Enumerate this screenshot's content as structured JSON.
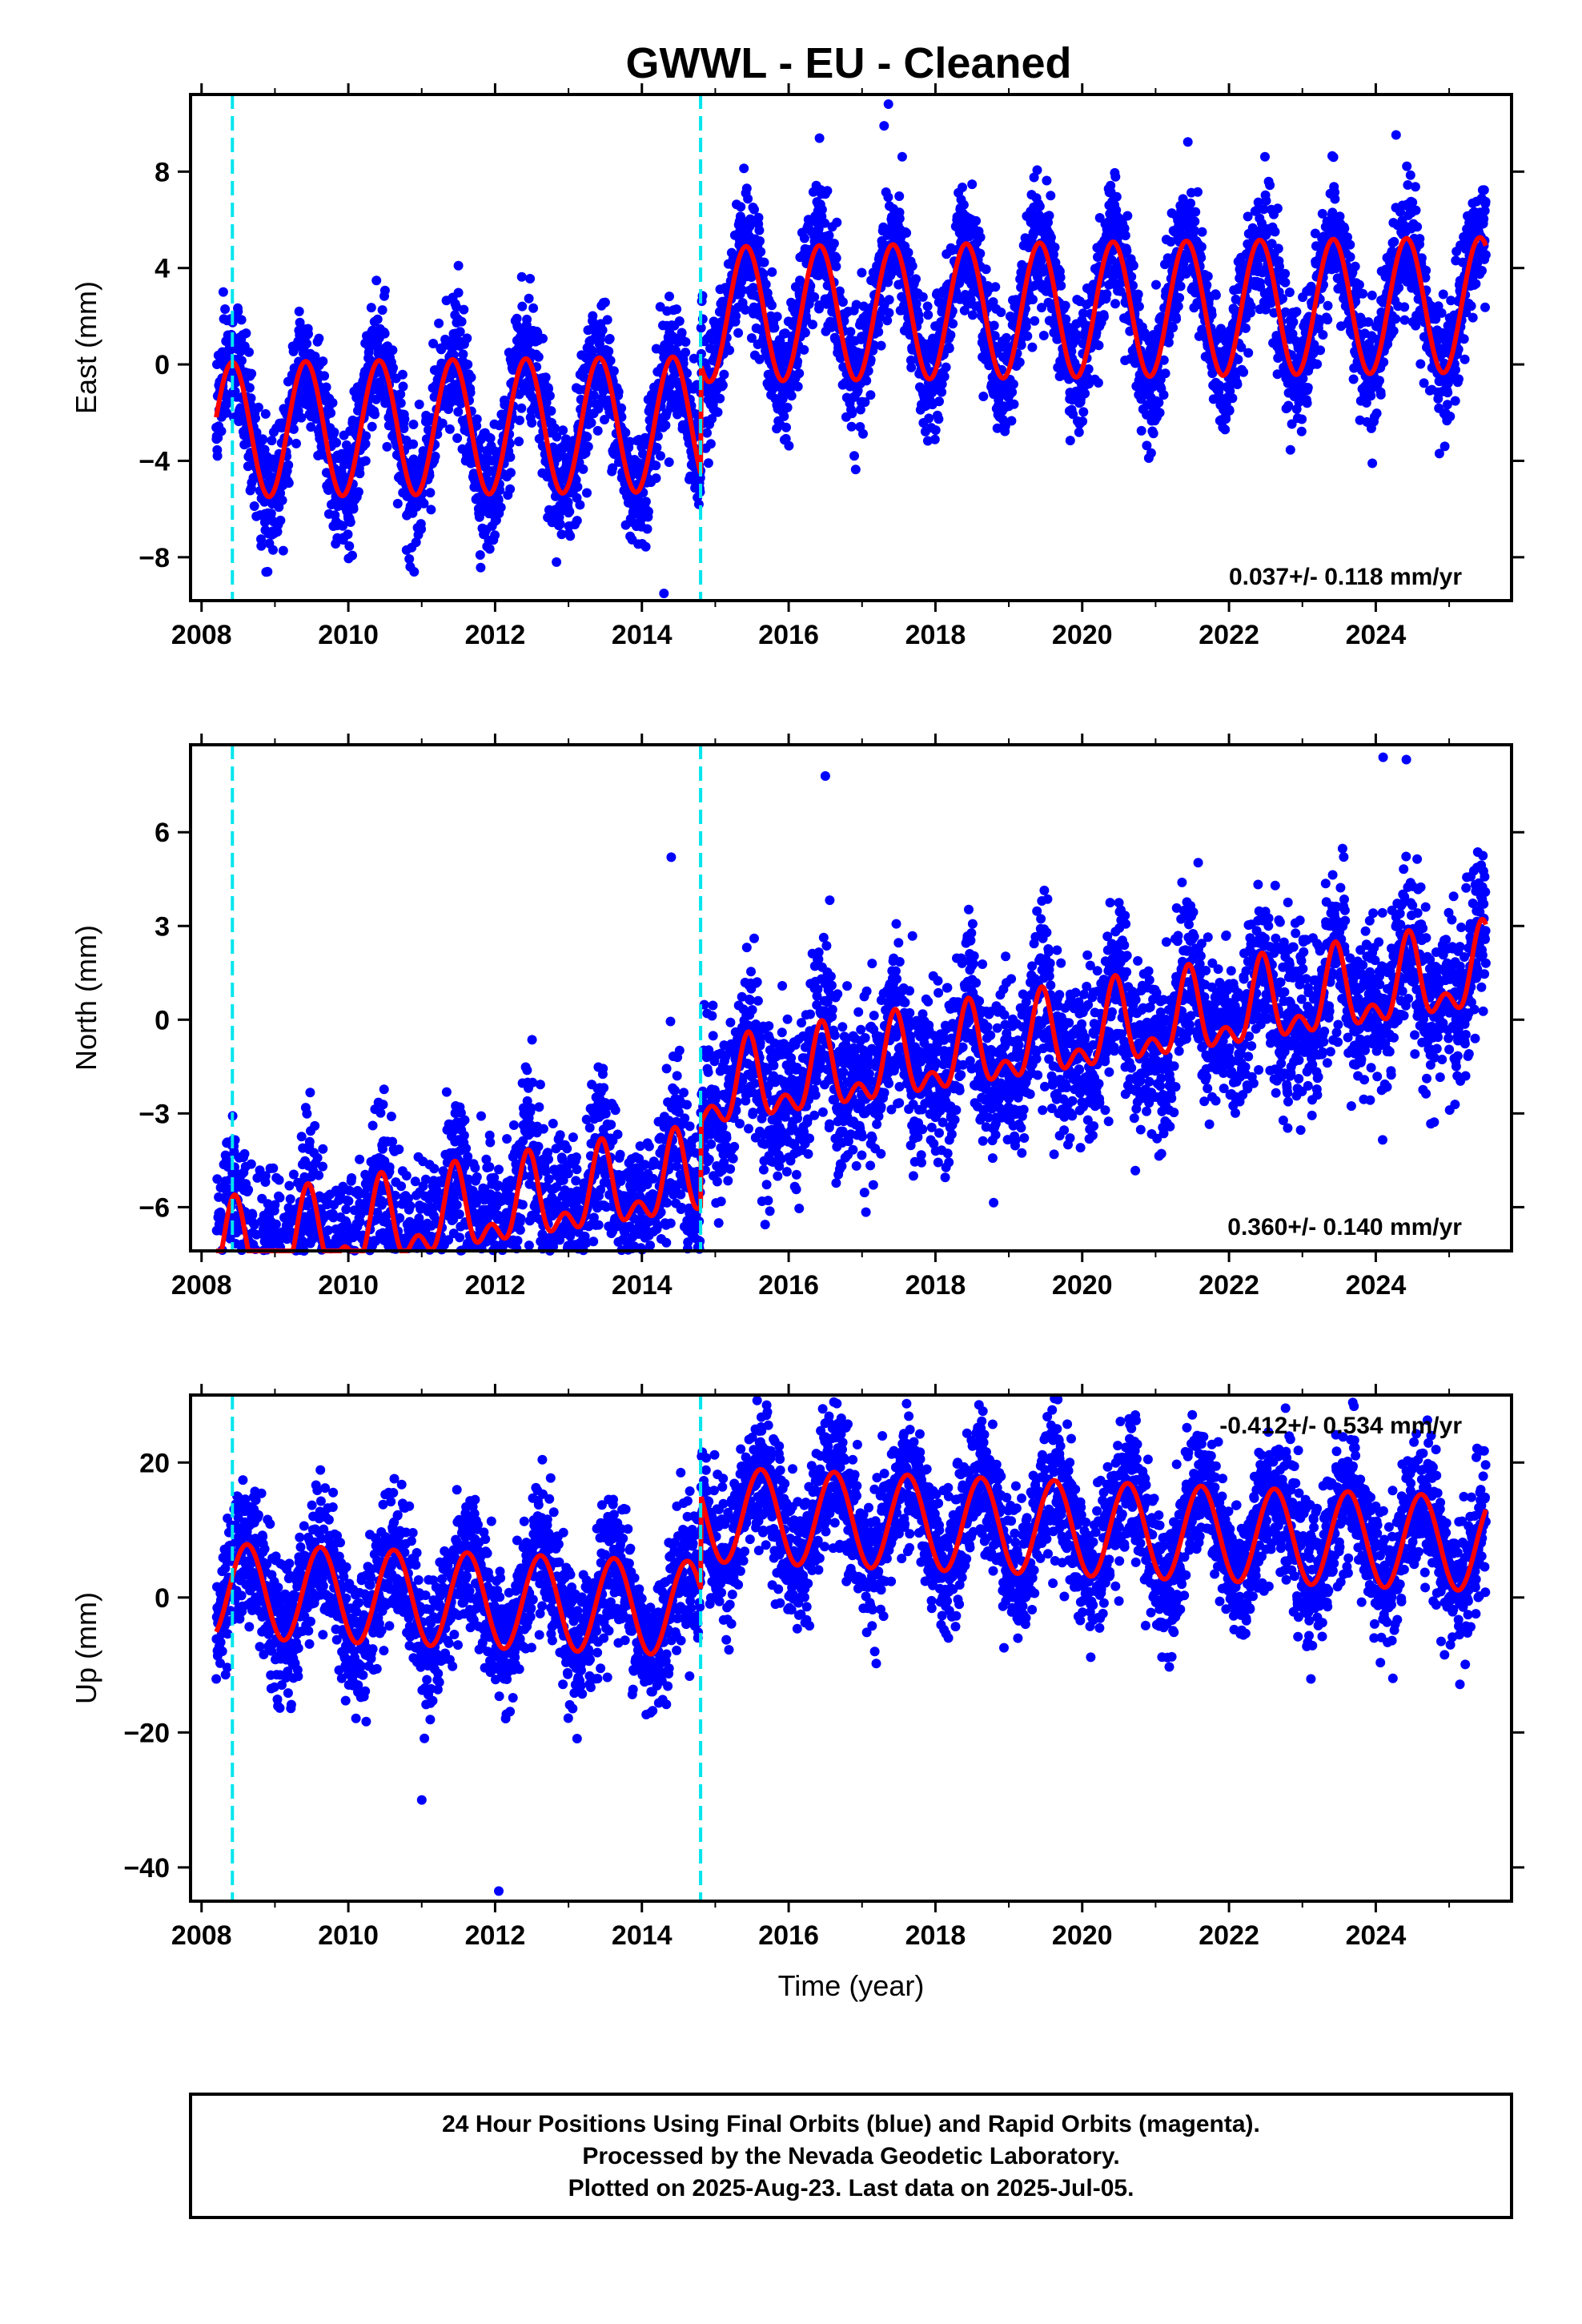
{
  "title": "GWWL  - EU - Cleaned",
  "colors": {
    "final_orbits": "#0000ff",
    "model_fit": "#ff0000",
    "offset_marker": "#00e5ee"
  },
  "chart_data": [
    {
      "type": "scatter",
      "component": "east",
      "ylabel": "East (mm)",
      "xlabel": "",
      "xlim": [
        2007.85,
        2025.85
      ],
      "ylim": [
        -9.8,
        11.2
      ],
      "xticks": [
        "2008",
        "2010",
        "2012",
        "2014",
        "2016",
        "2018",
        "2020",
        "2022",
        "2024"
      ],
      "yticks": [
        "8",
        "4",
        "0",
        "−4",
        "−8"
      ],
      "ytick_values": [
        8,
        4,
        0,
        -4,
        -8
      ],
      "rate_label": "0.037+/- 0.118 mm/yr",
      "offset_epochs": [
        2008.42,
        2014.8
      ],
      "data_span": [
        2008.2,
        2025.5
      ],
      "model": {
        "segments": [
          [
            2008.2,
            2014.8,
            -2.4
          ],
          [
            2014.8,
            2025.5,
            2.15
          ]
        ],
        "trend": 0.037,
        "annual_amplitude": 2.8,
        "annual_peak": 0.42
      },
      "series": [
        {
          "name": "Final Orbits",
          "kind": "points",
          "scatter_sd": 1.25
        },
        {
          "name": "Model",
          "kind": "line"
        }
      ],
      "outliers": [
        [
          2017.36,
          10.8
        ],
        [
          2017.3,
          9.9
        ],
        [
          2011.5,
          4.1
        ],
        [
          2014.3,
          -9.5
        ],
        [
          2008.9,
          -8.6
        ]
      ]
    },
    {
      "type": "scatter",
      "component": "north",
      "ylabel": "North (mm)",
      "xlabel": "",
      "xlim": [
        2007.85,
        2025.85
      ],
      "ylim": [
        -7.4,
        8.8
      ],
      "xticks": [
        "2008",
        "2010",
        "2012",
        "2014",
        "2016",
        "2018",
        "2020",
        "2022",
        "2024"
      ],
      "yticks": [
        "6",
        "3",
        "0",
        "−3",
        "−6"
      ],
      "ytick_values": [
        6,
        3,
        0,
        -3,
        -6
      ],
      "rate_label": "0.360+/- 0.140 mm/yr",
      "offset_epochs": [
        2008.42,
        2014.8
      ],
      "data_span": [
        2008.2,
        2025.5
      ],
      "model": {
        "segments": [
          [
            2008.2,
            2014.8,
            -4.4
          ],
          [
            2014.8,
            2025.5,
            -1.7
          ]
        ],
        "trend": 0.36,
        "annual_amplitude": 1.1,
        "annual_peak": 0.45,
        "semiannual_amplitude": 0.7
      },
      "series": [
        {
          "name": "Final Orbits",
          "kind": "points",
          "scatter_sd": 1.3
        },
        {
          "name": "Model",
          "kind": "line"
        }
      ],
      "outliers": [
        [
          2016.5,
          7.8
        ],
        [
          2024.1,
          8.4
        ],
        [
          2014.4,
          5.2
        ],
        [
          2017.7,
          -5.0
        ],
        [
          2010.2,
          -6.9
        ],
        [
          2012.1,
          -6.8
        ]
      ]
    },
    {
      "type": "scatter",
      "component": "up",
      "ylabel": "Up (mm)",
      "xlabel": "Time (year)",
      "xlim": [
        2007.85,
        2025.85
      ],
      "ylim": [
        -45.0,
        30.0
      ],
      "xticks": [
        "2008",
        "2010",
        "2012",
        "2014",
        "2016",
        "2018",
        "2020",
        "2022",
        "2024"
      ],
      "yticks": [
        "20",
        "0",
        "−20",
        "−40"
      ],
      "ytick_values": [
        20,
        0,
        -20,
        -40
      ],
      "rate_label": "-0.412+/- 0.534 mm/yr",
      "offset_epochs": [
        2008.42,
        2014.8
      ],
      "data_span": [
        2008.2,
        2025.5
      ],
      "model": {
        "segments": [
          [
            2008.2,
            2014.8,
            -2.5
          ],
          [
            2014.8,
            2025.5,
            11.5
          ]
        ],
        "trend": -0.412,
        "annual_amplitude": 7.0,
        "annual_peak": 0.62
      },
      "series": [
        {
          "name": "Final Orbits",
          "kind": "points",
          "scatter_sd": 5.0
        },
        {
          "name": "Model",
          "kind": "line"
        }
      ],
      "outliers": [
        [
          2012.05,
          -43.5
        ],
        [
          2015.7,
          28.5
        ],
        [
          2011.0,
          -30.0
        ]
      ]
    }
  ],
  "footer": {
    "line1": "24 Hour Positions Using Final Orbits (blue) and Rapid Orbits (magenta).",
    "line2": "Processed by the Nevada Geodetic Laboratory.",
    "line3": "Plotted on 2025-Aug-23. Last data on 2025-Jul-05."
  }
}
